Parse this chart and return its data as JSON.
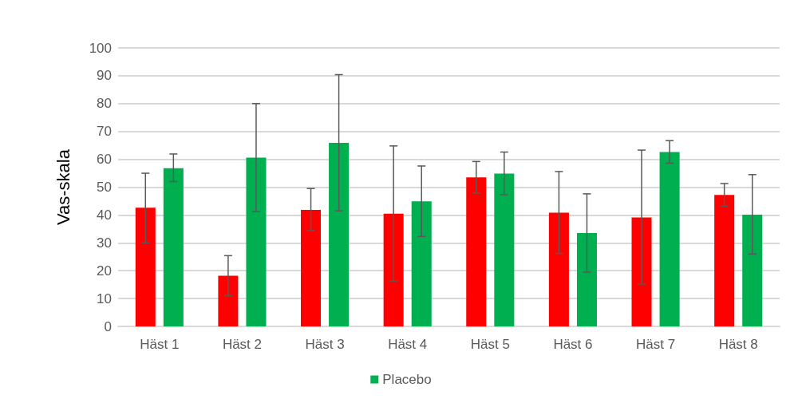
{
  "chart_data": {
    "type": "bar",
    "ylabel": "Vas-skala",
    "categories": [
      "Häst 1",
      "Häst 2",
      "Häst 3",
      "Häst 4",
      "Häst 5",
      "Häst 6",
      "Häst 7",
      "Häst 8"
    ],
    "series": [
      {
        "color": "#ff0000",
        "values": [
          42.6,
          18.2,
          41.8,
          40.5,
          53.5,
          40.8,
          39.1,
          47.2
        ],
        "errors": [
          [
            30.0,
            55.0
          ],
          [
            11.0,
            25.4
          ],
          [
            34.4,
            49.5
          ],
          [
            16.3,
            64.8
          ],
          [
            47.9,
            59.2
          ],
          [
            26.2,
            55.6
          ],
          [
            15.2,
            63.3
          ],
          [
            43.1,
            51.3
          ]
        ]
      },
      {
        "name": "Placebo",
        "color": "#00b050",
        "values": [
          56.8,
          60.6,
          65.9,
          44.9,
          54.9,
          33.5,
          62.6,
          40.1
        ],
        "errors": [
          [
            52.0,
            61.9
          ],
          [
            41.2,
            80.0
          ],
          [
            41.5,
            90.4
          ],
          [
            32.3,
            57.6
          ],
          [
            47.3,
            62.6
          ],
          [
            19.5,
            47.6
          ],
          [
            58.6,
            66.7
          ],
          [
            26.0,
            54.5
          ]
        ]
      }
    ],
    "ylim": [
      0,
      100
    ],
    "yticks": [
      0,
      10,
      20,
      30,
      40,
      50,
      60,
      70,
      80,
      90,
      100
    ],
    "grid": "y",
    "legend": "bottom"
  }
}
